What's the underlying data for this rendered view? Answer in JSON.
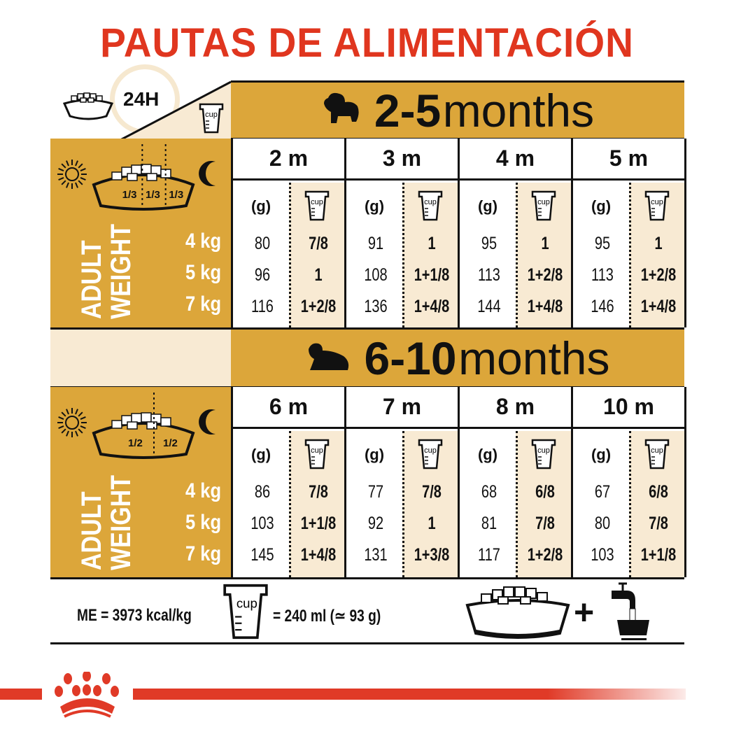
{
  "title": "PAUTAS DE ALIMENTACIÓN",
  "header": {
    "hours": "24H",
    "cup_label": "cup"
  },
  "colors": {
    "title_red": "#e0361f",
    "gold": "#dca63a",
    "cream": "#f8ead3",
    "brand_red": "#e03a27"
  },
  "sections": [
    {
      "age_range": "2-5",
      "age_unit": "months",
      "fractions": [
        "1/3",
        "1/3",
        "1/3"
      ],
      "weight_label": [
        "ADULT",
        "WEIGHT"
      ],
      "weights": [
        "4 kg",
        "5 kg",
        "7 kg"
      ],
      "grams_label": "(g)",
      "cup_label": "cup",
      "months": [
        {
          "label": "2 m",
          "grams": [
            "80",
            "96",
            "116"
          ],
          "cups": [
            "7/8",
            "1",
            "1+2/8"
          ]
        },
        {
          "label": "3 m",
          "grams": [
            "91",
            "108",
            "136"
          ],
          "cups": [
            "1",
            "1+1/8",
            "1+4/8"
          ]
        },
        {
          "label": "4 m",
          "grams": [
            "95",
            "113",
            "144"
          ],
          "cups": [
            "1",
            "1+2/8",
            "1+4/8"
          ]
        },
        {
          "label": "5 m",
          "grams": [
            "95",
            "113",
            "146"
          ],
          "cups": [
            "1",
            "1+2/8",
            "1+4/8"
          ]
        }
      ]
    },
    {
      "age_range": "6-10",
      "age_unit": "months",
      "fractions": [
        "1/2",
        "1/2"
      ],
      "weight_label": [
        "ADULT",
        "WEIGHT"
      ],
      "weights": [
        "4 kg",
        "5 kg",
        "7 kg"
      ],
      "grams_label": "(g)",
      "cup_label": "cup",
      "months": [
        {
          "label": "6 m",
          "grams": [
            "86",
            "103",
            "145"
          ],
          "cups": [
            "7/8",
            "1+1/8",
            "1+4/8"
          ]
        },
        {
          "label": "7 m",
          "grams": [
            "77",
            "92",
            "131"
          ],
          "cups": [
            "7/8",
            "1",
            "1+3/8"
          ]
        },
        {
          "label": "8 m",
          "grams": [
            "68",
            "81",
            "117"
          ],
          "cups": [
            "6/8",
            "7/8",
            "1+2/8"
          ]
        },
        {
          "label": "10 m",
          "grams": [
            "67",
            "80",
            "103"
          ],
          "cups": [
            "6/8",
            "7/8",
            "1+1/8"
          ]
        }
      ]
    }
  ],
  "footer": {
    "energy": "ME = 3973 kcal/kg",
    "cup_label": "cup",
    "cup_equiv": "= 240 ml (≃ 93 g)",
    "plus": "+"
  }
}
